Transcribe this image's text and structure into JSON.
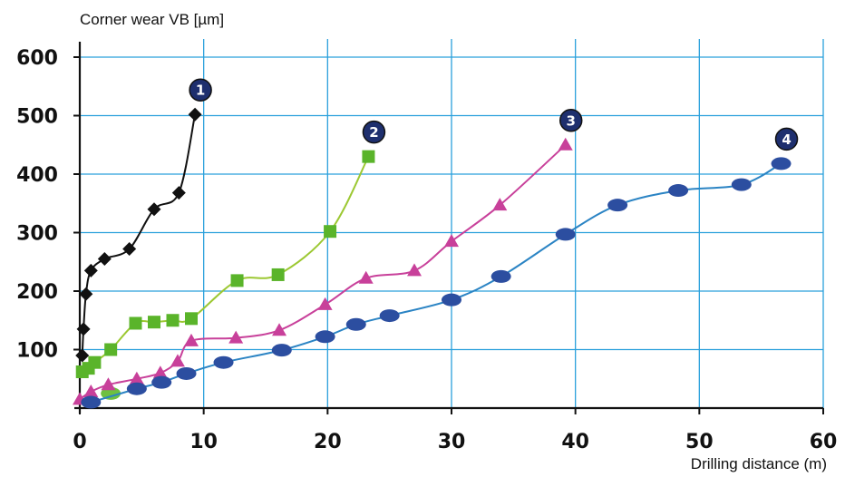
{
  "chart_data": {
    "type": "line",
    "title": "",
    "ylabel": "Corner wear VB [µm]",
    "xlabel": "Drilling distance  (m)",
    "xlim": [
      0,
      60
    ],
    "ylim": [
      0,
      600
    ],
    "x_ticks": [
      0,
      10,
      20,
      30,
      40,
      50,
      60
    ],
    "y_ticks": [
      100,
      200,
      300,
      400,
      500,
      600
    ],
    "grid": true,
    "grid_color": "#2aa0dc",
    "series": [
      {
        "badge": "1",
        "color": "#111111",
        "marker": "diamond",
        "x": [
          0.2,
          0.3,
          0.5,
          0.9,
          2.0,
          4.0,
          6.0,
          8.0,
          9.3
        ],
        "y": [
          90,
          135,
          195,
          235,
          255,
          272,
          340,
          368,
          502
        ]
      },
      {
        "badge": "2",
        "color": "#9cc832",
        "marker": "square",
        "marker_color": "#5ab42a",
        "x": [
          0.2,
          0.7,
          1.2,
          2.5,
          4.5,
          6.0,
          7.5,
          9.0,
          12.7,
          16.0,
          20.2,
          23.3
        ],
        "y": [
          62,
          68,
          78,
          100,
          145,
          147,
          150,
          153,
          218,
          228,
          302,
          430
        ],
        "extra_points": [
          {
            "x": 2.5,
            "y": 25,
            "shape": "ellipse",
            "color": "#6ec040"
          }
        ]
      },
      {
        "badge": "3",
        "color": "#c8409a",
        "marker": "triangle",
        "x": [
          0.0,
          0.9,
          2.3,
          4.6,
          6.5,
          7.9,
          9.0,
          12.6,
          16.1,
          19.8,
          23.1,
          27.0,
          30.0,
          33.9,
          39.2
        ],
        "y": [
          15,
          28,
          40,
          50,
          60,
          80,
          115,
          120,
          133,
          177,
          222,
          235,
          285,
          347,
          450
        ]
      },
      {
        "badge": "4",
        "color": "#2c4ea0",
        "line_color": "#2b84c4",
        "marker": "ellipse",
        "x": [
          0.9,
          4.6,
          6.6,
          8.6,
          11.6,
          16.3,
          19.8,
          22.3,
          25.0,
          30.0,
          34.0,
          39.2,
          43.4,
          48.3,
          53.4,
          56.6
        ],
        "y": [
          10,
          33,
          44,
          59,
          78,
          99,
          122,
          143,
          158,
          185,
          225,
          297,
          347,
          372,
          382,
          418
        ]
      }
    ]
  }
}
